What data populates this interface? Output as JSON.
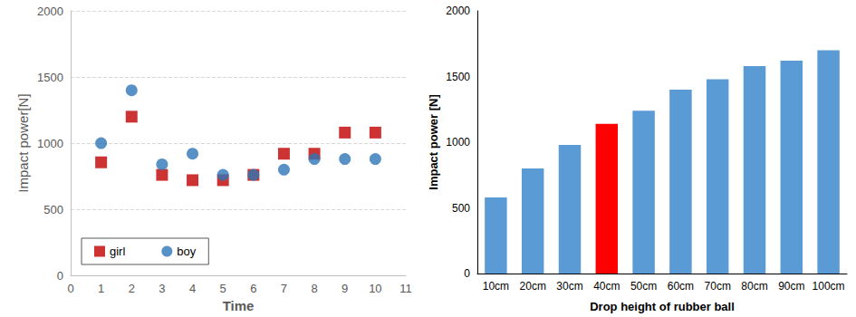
{
  "chart_data": [
    {
      "type": "scatter",
      "x_label": "Time",
      "y_label": "Impact power[N]",
      "xlim": [
        0,
        11
      ],
      "xticks": [
        0,
        1,
        2,
        3,
        4,
        5,
        6,
        7,
        8,
        9,
        10,
        11
      ],
      "ylim": [
        0,
        2000
      ],
      "yticks": [
        0,
        500,
        1000,
        1500,
        2000
      ],
      "grid": true,
      "legend": "lower left",
      "series": [
        {
          "name": "girl",
          "color": "#c00000",
          "marker": "square",
          "x": [
            1,
            2,
            3,
            4,
            5,
            6,
            7,
            8,
            9,
            10
          ],
          "values": [
            855,
            1200,
            760,
            720,
            720,
            760,
            920,
            920,
            1080,
            1080
          ]
        },
        {
          "name": "boy",
          "color": "#2e75b6",
          "marker": "circle",
          "x": [
            1,
            2,
            3,
            4,
            5,
            6,
            7,
            8,
            9,
            10
          ],
          "values": [
            1000,
            1400,
            840,
            920,
            760,
            760,
            800,
            880,
            880,
            880
          ]
        }
      ]
    },
    {
      "type": "bar",
      "x_label": "Drop height of rubber ball",
      "y_label": "Impact power [N]",
      "categories": [
        "10cm",
        "20cm",
        "30cm",
        "40cm",
        "50cm",
        "60cm",
        "70cm",
        "80cm",
        "90cm",
        "100cm"
      ],
      "values": [
        580,
        800,
        980,
        1140,
        1240,
        1400,
        1480,
        1580,
        1620,
        1700
      ],
      "colors": [
        "#5b9bd5",
        "#5b9bd5",
        "#5b9bd5",
        "#ff0000",
        "#5b9bd5",
        "#5b9bd5",
        "#5b9bd5",
        "#5b9bd5",
        "#5b9bd5",
        "#5b9bd5"
      ],
      "ylim": [
        0,
        2000
      ],
      "yticks": [
        0,
        500,
        1000,
        1500,
        2000
      ],
      "grid": false
    }
  ]
}
